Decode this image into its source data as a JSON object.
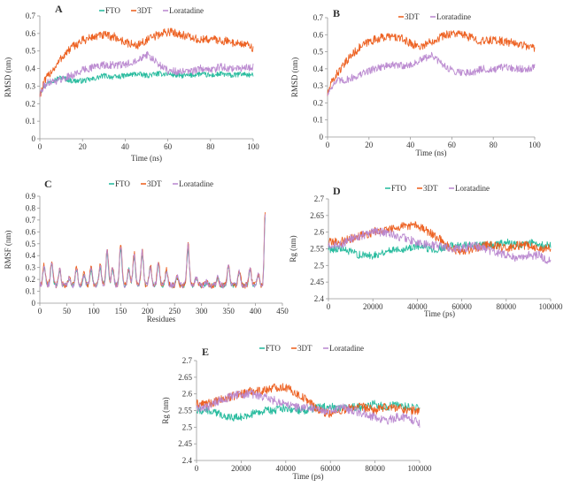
{
  "colors": {
    "FTO": "#1fb89a",
    "3DT": "#ec5a17",
    "Loratadine": "#b886cf"
  },
  "chart_data": [
    {
      "panel": "A",
      "type": "line",
      "xlabel": "Time (ns)",
      "ylabel": "RMSD (nm)",
      "xlim": [
        0,
        100
      ],
      "ylim": [
        0,
        0.7
      ],
      "xticks": [
        "0",
        "20",
        "40",
        "60",
        "80",
        "100"
      ],
      "yticks": [
        "0",
        "0.1",
        "0.2",
        "0.3",
        "0.4",
        "0.5",
        "0.6",
        "0.7"
      ],
      "legend": [
        "FTO",
        "3DT",
        "Loratadine"
      ],
      "series": [
        {
          "name": "FTO",
          "x": [
            0,
            2,
            5,
            8,
            10,
            15,
            20,
            25,
            30,
            35,
            40,
            45,
            50,
            55,
            60,
            65,
            70,
            75,
            80,
            85,
            90,
            95,
            100
          ],
          "values": [
            0.26,
            0.3,
            0.33,
            0.34,
            0.35,
            0.33,
            0.33,
            0.34,
            0.36,
            0.35,
            0.36,
            0.37,
            0.36,
            0.37,
            0.37,
            0.36,
            0.36,
            0.37,
            0.36,
            0.37,
            0.36,
            0.37,
            0.36
          ],
          "noise": 0.015
        },
        {
          "name": "3DT",
          "x": [
            0,
            2,
            5,
            8,
            10,
            15,
            20,
            25,
            30,
            35,
            40,
            45,
            50,
            55,
            60,
            65,
            70,
            75,
            80,
            85,
            90,
            95,
            100
          ],
          "values": [
            0.25,
            0.32,
            0.38,
            0.42,
            0.46,
            0.52,
            0.56,
            0.58,
            0.59,
            0.58,
            0.55,
            0.53,
            0.56,
            0.59,
            0.61,
            0.6,
            0.58,
            0.56,
            0.57,
            0.56,
            0.55,
            0.54,
            0.52
          ],
          "noise": 0.025
        },
        {
          "name": "Loratadine",
          "x": [
            0,
            2,
            5,
            8,
            10,
            15,
            20,
            25,
            30,
            35,
            40,
            45,
            50,
            55,
            60,
            65,
            70,
            75,
            80,
            85,
            90,
            95,
            100
          ],
          "values": [
            0.25,
            0.3,
            0.33,
            0.33,
            0.34,
            0.36,
            0.39,
            0.41,
            0.42,
            0.42,
            0.42,
            0.45,
            0.48,
            0.43,
            0.39,
            0.38,
            0.38,
            0.4,
            0.39,
            0.41,
            0.4,
            0.4,
            0.41
          ],
          "noise": 0.022
        }
      ]
    },
    {
      "panel": "B",
      "type": "line",
      "xlabel": "Time (ns)",
      "ylabel": "RMSD (nm)",
      "xlim": [
        0,
        100
      ],
      "ylim": [
        0,
        0.7
      ],
      "xticks": [
        "0",
        "20",
        "40",
        "60",
        "80",
        "100"
      ],
      "yticks": [
        "0",
        "0.1",
        "0.2",
        "0.3",
        "0.4",
        "0.5",
        "0.6",
        "0.7"
      ],
      "legend": [
        "3DT",
        "Loratadine"
      ],
      "series": [
        {
          "name": "3DT",
          "x": [
            0,
            2,
            5,
            8,
            10,
            15,
            20,
            25,
            30,
            35,
            40,
            45,
            50,
            55,
            60,
            65,
            70,
            75,
            80,
            85,
            90,
            95,
            100
          ],
          "values": [
            0.25,
            0.32,
            0.38,
            0.42,
            0.46,
            0.52,
            0.56,
            0.58,
            0.59,
            0.58,
            0.55,
            0.53,
            0.56,
            0.59,
            0.61,
            0.6,
            0.58,
            0.56,
            0.57,
            0.56,
            0.55,
            0.54,
            0.52
          ],
          "noise": 0.025
        },
        {
          "name": "Loratadine",
          "x": [
            0,
            2,
            5,
            8,
            10,
            15,
            20,
            25,
            30,
            35,
            40,
            45,
            50,
            55,
            60,
            65,
            70,
            75,
            80,
            85,
            90,
            95,
            100
          ],
          "values": [
            0.25,
            0.3,
            0.33,
            0.33,
            0.34,
            0.36,
            0.39,
            0.41,
            0.42,
            0.42,
            0.42,
            0.45,
            0.48,
            0.43,
            0.39,
            0.38,
            0.38,
            0.4,
            0.39,
            0.41,
            0.4,
            0.4,
            0.41
          ],
          "noise": 0.022
        }
      ]
    },
    {
      "panel": "C",
      "type": "line",
      "xlabel": "Residues",
      "ylabel": "RMSF (nm)",
      "xlim": [
        0,
        450
      ],
      "ylim": [
        0,
        0.9
      ],
      "xticks": [
        "0",
        "50",
        "100",
        "150",
        "200",
        "250",
        "300",
        "350",
        "400",
        "450"
      ],
      "yticks": [
        "0",
        "0.1",
        "0.2",
        "0.3",
        "0.4",
        "0.5",
        "0.6",
        "0.7",
        "0.8",
        "0.9"
      ],
      "legend": [
        "FTO",
        "3DT",
        "Loratadine"
      ],
      "baseline": 0.15,
      "peaks": [
        [
          8,
          0.32
        ],
        [
          22,
          0.35
        ],
        [
          37,
          0.28
        ],
        [
          55,
          0.22
        ],
        [
          68,
          0.3
        ],
        [
          82,
          0.25
        ],
        [
          95,
          0.3
        ],
        [
          112,
          0.32
        ],
        [
          125,
          0.45
        ],
        [
          135,
          0.3
        ],
        [
          150,
          0.5
        ],
        [
          165,
          0.3
        ],
        [
          175,
          0.42
        ],
        [
          190,
          0.45
        ],
        [
          205,
          0.32
        ],
        [
          220,
          0.36
        ],
        [
          235,
          0.28
        ],
        [
          255,
          0.22
        ],
        [
          275,
          0.5
        ],
        [
          290,
          0.22
        ],
        [
          310,
          0.18
        ],
        [
          330,
          0.22
        ],
        [
          350,
          0.32
        ],
        [
          370,
          0.28
        ],
        [
          390,
          0.3
        ],
        [
          405,
          0.25
        ],
        [
          418,
          0.78
        ]
      ],
      "series": [
        {
          "name": "FTO",
          "scale": 0.88,
          "noise": 0.02
        },
        {
          "name": "3DT",
          "scale": 1.0,
          "noise": 0.025
        },
        {
          "name": "Loratadine",
          "scale": 0.95,
          "noise": 0.025
        }
      ]
    },
    {
      "panel": "D",
      "type": "line",
      "xlabel": "Time (ps)",
      "ylabel": "Rg (nm)",
      "xlim": [
        0,
        100000
      ],
      "ylim": [
        2.4,
        2.7
      ],
      "xticks": [
        "0",
        "20000",
        "40000",
        "60000",
        "80000",
        "100000"
      ],
      "yticks": [
        "2.4",
        "2.45",
        "2.5",
        "2.55",
        "2.6",
        "2.65",
        "2.7"
      ],
      "legend": [
        "FTO",
        "3DT",
        "Loratadine"
      ],
      "series": [
        {
          "name": "FTO",
          "x": [
            0,
            5000,
            10000,
            15000,
            20000,
            25000,
            30000,
            35000,
            40000,
            45000,
            50000,
            55000,
            60000,
            65000,
            70000,
            75000,
            80000,
            85000,
            90000,
            95000,
            100000
          ],
          "values": [
            2.55,
            2.55,
            2.54,
            2.53,
            2.53,
            2.54,
            2.55,
            2.55,
            2.56,
            2.55,
            2.55,
            2.56,
            2.56,
            2.56,
            2.56,
            2.56,
            2.57,
            2.56,
            2.57,
            2.56,
            2.56
          ],
          "noise": 0.012
        },
        {
          "name": "3DT",
          "x": [
            0,
            5000,
            10000,
            15000,
            20000,
            25000,
            30000,
            35000,
            40000,
            45000,
            50000,
            55000,
            60000,
            65000,
            70000,
            75000,
            80000,
            85000,
            90000,
            95000,
            100000
          ],
          "values": [
            2.57,
            2.57,
            2.58,
            2.59,
            2.6,
            2.61,
            2.61,
            2.62,
            2.62,
            2.6,
            2.58,
            2.55,
            2.54,
            2.55,
            2.56,
            2.56,
            2.55,
            2.56,
            2.56,
            2.55,
            2.55
          ],
          "noise": 0.013
        },
        {
          "name": "Loratadine",
          "x": [
            0,
            5000,
            10000,
            15000,
            20000,
            25000,
            30000,
            35000,
            40000,
            45000,
            50000,
            55000,
            60000,
            65000,
            70000,
            75000,
            80000,
            85000,
            90000,
            95000,
            100000
          ],
          "values": [
            2.56,
            2.56,
            2.58,
            2.59,
            2.6,
            2.6,
            2.59,
            2.58,
            2.57,
            2.56,
            2.56,
            2.55,
            2.55,
            2.56,
            2.55,
            2.54,
            2.53,
            2.52,
            2.53,
            2.53,
            2.51
          ],
          "noise": 0.013
        }
      ]
    },
    {
      "panel": "E",
      "type": "line",
      "xlabel": "Time (ps)",
      "ylabel": "Rg (nm)",
      "xlim": [
        0,
        100000
      ],
      "ylim": [
        2.4,
        2.7
      ],
      "xticks": [
        "0",
        "20000",
        "40000",
        "60000",
        "80000",
        "100000"
      ],
      "yticks": [
        "2.4",
        "2.45",
        "2.5",
        "2.55",
        "2.6",
        "2.65",
        "2.7"
      ],
      "legend": [
        "FTO",
        "3DT",
        "Loratadine"
      ],
      "series": [
        {
          "name": "FTO",
          "x": [
            0,
            5000,
            10000,
            15000,
            20000,
            25000,
            30000,
            35000,
            40000,
            45000,
            50000,
            55000,
            60000,
            65000,
            70000,
            75000,
            80000,
            85000,
            90000,
            95000,
            100000
          ],
          "values": [
            2.55,
            2.55,
            2.54,
            2.53,
            2.53,
            2.54,
            2.55,
            2.55,
            2.56,
            2.55,
            2.55,
            2.56,
            2.56,
            2.56,
            2.56,
            2.56,
            2.57,
            2.56,
            2.57,
            2.56,
            2.56
          ],
          "noise": 0.012
        },
        {
          "name": "3DT",
          "x": [
            0,
            5000,
            10000,
            15000,
            20000,
            25000,
            30000,
            35000,
            40000,
            45000,
            50000,
            55000,
            60000,
            65000,
            70000,
            75000,
            80000,
            85000,
            90000,
            95000,
            100000
          ],
          "values": [
            2.57,
            2.57,
            2.58,
            2.59,
            2.6,
            2.61,
            2.61,
            2.62,
            2.62,
            2.6,
            2.58,
            2.55,
            2.54,
            2.55,
            2.56,
            2.56,
            2.55,
            2.56,
            2.56,
            2.55,
            2.55
          ],
          "noise": 0.013
        },
        {
          "name": "Loratadine",
          "x": [
            0,
            5000,
            10000,
            15000,
            20000,
            25000,
            30000,
            35000,
            40000,
            45000,
            50000,
            55000,
            60000,
            65000,
            70000,
            75000,
            80000,
            85000,
            90000,
            95000,
            100000
          ],
          "values": [
            2.56,
            2.56,
            2.58,
            2.59,
            2.6,
            2.6,
            2.59,
            2.58,
            2.57,
            2.56,
            2.56,
            2.55,
            2.55,
            2.56,
            2.55,
            2.54,
            2.53,
            2.52,
            2.53,
            2.53,
            2.51
          ],
          "noise": 0.013
        }
      ]
    }
  ]
}
